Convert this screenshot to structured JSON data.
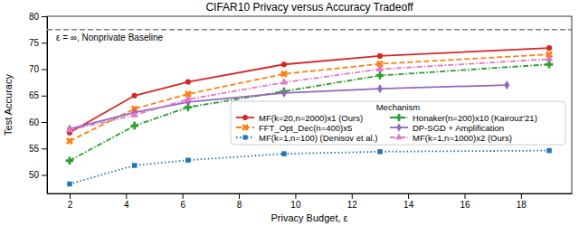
{
  "chart_data": {
    "type": "line",
    "title": "CIFAR10 Privacy versus Accuracy Tradeoff",
    "x_label": "Privacy Budget, ε",
    "y_label": "Test Accuracy",
    "x": [
      2,
      4.3,
      6.2,
      9.6,
      13.0,
      19.0
    ],
    "xlim": [
      1.2,
      19.8
    ],
    "xticks": [
      2,
      4,
      6,
      8,
      10,
      12,
      14,
      16,
      18
    ],
    "ylim": [
      46.5,
      80
    ],
    "yticks": [
      50,
      55,
      60,
      65,
      70,
      75,
      80
    ],
    "grid": false,
    "legend": "lower right",
    "legend_title": "Mechanism",
    "baseline": {
      "value": 77.5,
      "label": "ε = ∞, Nonprivate Baseline",
      "color": "#7f7f7f",
      "line_style": "dashed"
    },
    "series": [
      {
        "name": "MF(k=20,n=2000)x1 (Ours)",
        "color": "#d62728",
        "marker": "circle",
        "line_style": "solid",
        "values": [
          58.0,
          65.0,
          67.6,
          70.9,
          72.5,
          74.0
        ]
      },
      {
        "name": "FFT_Opt_Dec(n=400)x5",
        "color": "#ff7f0e",
        "marker": "x",
        "line_style": "dashed",
        "values": [
          56.4,
          62.5,
          65.3,
          69.1,
          71.0,
          72.8
        ]
      },
      {
        "name": "MF(k=1,n=100) (Denisov et al.)",
        "color": "#1f77b4",
        "marker": "square",
        "line_style": "dotted",
        "values": [
          48.3,
          51.8,
          52.8,
          54.0,
          54.4,
          54.6
        ]
      },
      {
        "name": "Honaker(n=200)x10 (Kairouz'21)",
        "color": "#2ca02c",
        "marker": "plus",
        "line_style": "dashdot",
        "values": [
          52.7,
          59.3,
          62.8,
          65.8,
          68.8,
          70.9
        ]
      },
      {
        "name": "DP-SGD + Amplification",
        "color": "#9467bd",
        "marker": "diamond",
        "line_style": "solid",
        "x": [
          2,
          4.3,
          6.2,
          9.6,
          13.0,
          17.5
        ],
        "values": [
          58.7,
          61.8,
          63.8,
          65.5,
          66.3,
          67.0
        ]
      },
      {
        "name": "MF(k=1,n=1000)x2 (Ours)",
        "color": "#e377c2",
        "marker": "triangle",
        "line_style": "dashdot",
        "values": [
          58.5,
          61.3,
          64.3,
          67.5,
          70.0,
          71.9
        ]
      }
    ]
  }
}
